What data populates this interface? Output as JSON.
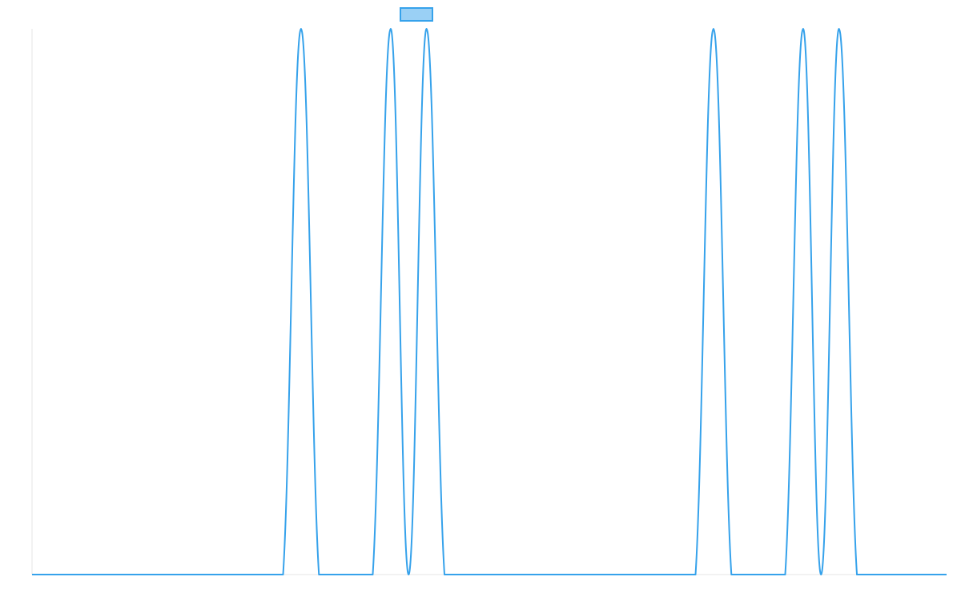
{
  "chart_data": {
    "type": "line",
    "title": "",
    "xlabel": "",
    "ylabel": "",
    "legend": {
      "placement": "top-center",
      "series_label": ""
    },
    "grid": false,
    "xlim": [
      0,
      51
    ],
    "ylim": [
      0,
      1
    ],
    "series": [
      {
        "name": "",
        "color": "#36A2EB",
        "legend_fill": "#9AD0F5",
        "x": [
          0,
          1,
          2,
          3,
          4,
          5,
          6,
          7,
          8,
          9,
          10,
          11,
          12,
          13,
          14,
          15,
          16,
          17,
          18,
          19,
          20,
          21,
          22,
          23,
          24,
          25,
          26,
          27,
          28,
          29,
          30,
          31,
          32,
          33,
          34,
          35,
          36,
          37,
          38,
          39,
          40,
          41,
          42,
          43,
          44,
          45,
          46,
          47,
          48,
          49,
          50,
          51
        ],
        "values": [
          0,
          0,
          0,
          0,
          0,
          0,
          0,
          0,
          0,
          0,
          0,
          0,
          0,
          0,
          0,
          1,
          0,
          0,
          0,
          0,
          1,
          0,
          1,
          0,
          0,
          0,
          0,
          0,
          0,
          0,
          0,
          0,
          0,
          0,
          0,
          0,
          0,
          0,
          1,
          0,
          0,
          0,
          0,
          1,
          0,
          1,
          0,
          0,
          0,
          0,
          0,
          0
        ]
      }
    ]
  }
}
